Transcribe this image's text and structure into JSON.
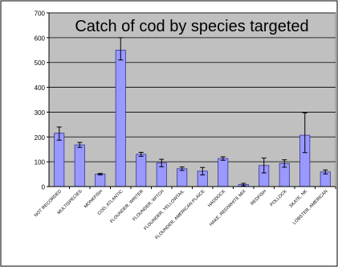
{
  "chart_data": {
    "type": "bar",
    "title": "Catch of cod by species targeted",
    "xlabel": "",
    "ylabel": "",
    "ylim": [
      0,
      700
    ],
    "yticks": [
      0,
      100,
      200,
      300,
      400,
      500,
      600,
      700
    ],
    "grid": true,
    "legend": "none",
    "categories": [
      "NOT RECORDED",
      "MULTISPECIES",
      "MONKFISH",
      "COD, ATLANTIC",
      "FLOUNDER, WINTER",
      "FLOUNDER, WITCH",
      "FLOUNDER, YELLOWTAIL",
      "FLOUNDER, AMERICAN PLAICE",
      "HADDOCK",
      "HAKE, RED/WHITE MIX",
      "REDFISH",
      "POLLOCK",
      "SKATE, NK",
      "LOBSTER, AMERICAN"
    ],
    "values": [
      215,
      168,
      50,
      550,
      130,
      95,
      72,
      62,
      113,
      8,
      85,
      93,
      207,
      59
    ],
    "error_low": [
      28,
      10,
      3,
      40,
      8,
      15,
      7,
      15,
      7,
      5,
      30,
      15,
      70,
      8
    ],
    "error_high": [
      25,
      10,
      3,
      50,
      8,
      15,
      7,
      15,
      7,
      5,
      30,
      15,
      90,
      8
    ],
    "colors": {
      "plot_bg": "#c0c0c0",
      "bar_fill": "#9999ff",
      "bar_stroke": "#333399",
      "axis": "#000000",
      "grid": "#000000"
    }
  }
}
